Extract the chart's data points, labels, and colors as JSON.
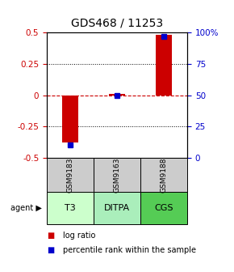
{
  "title": "GDS468 / 11253",
  "samples": [
    "GSM9183",
    "GSM9163",
    "GSM9188"
  ],
  "agents": [
    "T3",
    "DITPA",
    "CGS"
  ],
  "log_ratios": [
    -0.38,
    0.01,
    0.48
  ],
  "percentile_ranks": [
    10.0,
    50.0,
    97.0
  ],
  "ylim_left": [
    -0.5,
    0.5
  ],
  "ylim_right": [
    0,
    100
  ],
  "yticks_left": [
    -0.5,
    -0.25,
    0,
    0.25,
    0.5
  ],
  "ytick_labels_left": [
    "-0.5",
    "-0.25",
    "0",
    "0.25",
    "0.5"
  ],
  "yticks_right": [
    0,
    25,
    50,
    75,
    100
  ],
  "ytick_labels_right": [
    "0",
    "25",
    "50",
    "75",
    "100%"
  ],
  "bar_color": "#cc0000",
  "dot_color": "#0000cc",
  "zero_line_color": "#cc0000",
  "agent_colors": [
    "#ccffcc",
    "#aaeebb",
    "#55cc55"
  ],
  "gsm_bg_color": "#cccccc",
  "bar_width": 0.35,
  "title_fontsize": 10,
  "tick_fontsize": 7.5,
  "legend_fontsize": 7
}
